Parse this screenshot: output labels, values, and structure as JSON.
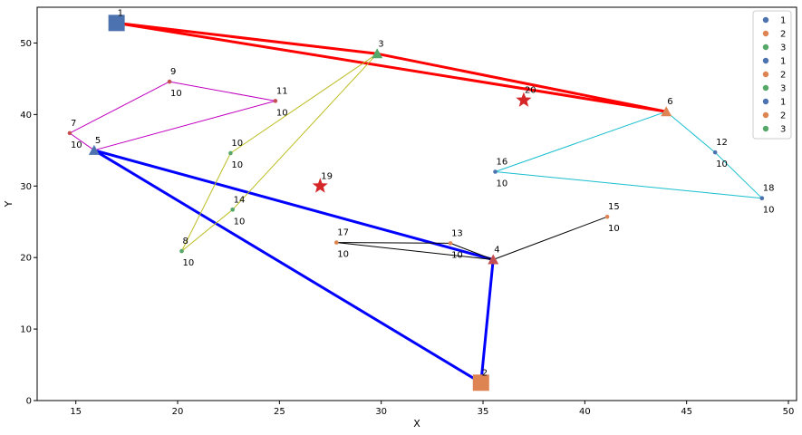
{
  "chart_data": {
    "type": "scatter",
    "xlabel": "X",
    "ylabel": "Y",
    "xlim": [
      13.1,
      50.4
    ],
    "ylim": [
      0,
      55
    ],
    "xticks": [
      15,
      20,
      25,
      30,
      35,
      40,
      45,
      50
    ],
    "yticks": [
      0,
      10,
      20,
      30,
      40,
      50
    ],
    "grid": false,
    "legend_position": "top-right",
    "legend": [
      {
        "label": "1",
        "color": "#4c72b0"
      },
      {
        "label": "2",
        "color": "#dd8452"
      },
      {
        "label": "3",
        "color": "#55a868"
      },
      {
        "label": "1",
        "color": "#4c72b0"
      },
      {
        "label": "2",
        "color": "#dd8452"
      },
      {
        "label": "3",
        "color": "#55a868"
      },
      {
        "label": "1",
        "color": "#4c72b0"
      },
      {
        "label": "2",
        "color": "#dd8452"
      },
      {
        "label": "3",
        "color": "#55a868"
      }
    ],
    "nodes": [
      {
        "id": "1",
        "x": 17.0,
        "y": 52.8,
        "marker": "square",
        "color": "#4c72b0"
      },
      {
        "id": "2",
        "x": 34.9,
        "y": 2.5,
        "marker": "square",
        "color": "#dd8452"
      },
      {
        "id": "3",
        "x": 29.8,
        "y": 48.5,
        "marker": "triangle",
        "color": "#55a868"
      },
      {
        "id": "4",
        "x": 35.5,
        "y": 19.7,
        "marker": "triangle",
        "color": "#c44e52"
      },
      {
        "id": "5",
        "x": 15.9,
        "y": 35.0,
        "marker": "triangle",
        "color": "#4c72b0"
      },
      {
        "id": "6",
        "x": 44.0,
        "y": 40.4,
        "marker": "triangle",
        "color": "#dd8452"
      },
      {
        "id": "7",
        "x": 14.7,
        "y": 37.4,
        "marker": "dot",
        "color": "#c44e52",
        "demand": "10"
      },
      {
        "id": "8",
        "x": 20.2,
        "y": 20.9,
        "marker": "dot",
        "color": "#55a868",
        "demand": "10"
      },
      {
        "id": "9",
        "x": 19.6,
        "y": 44.6,
        "marker": "dot",
        "color": "#c44e52",
        "demand": "10"
      },
      {
        "id": "10",
        "x": 22.6,
        "y": 34.6,
        "marker": "dot",
        "color": "#55a868",
        "demand": "10"
      },
      {
        "id": "11",
        "x": 24.8,
        "y": 41.9,
        "marker": "dot",
        "color": "#c44e52",
        "demand": "10"
      },
      {
        "id": "12",
        "x": 46.4,
        "y": 34.7,
        "marker": "dot",
        "color": "#4c72b0",
        "demand": "10"
      },
      {
        "id": "13",
        "x": 33.4,
        "y": 22.0,
        "marker": "dot",
        "color": "#dd8452",
        "demand": "10"
      },
      {
        "id": "14",
        "x": 22.7,
        "y": 26.7,
        "marker": "dot",
        "color": "#55a868",
        "demand": "10"
      },
      {
        "id": "15",
        "x": 41.1,
        "y": 25.7,
        "marker": "dot",
        "color": "#dd8452",
        "demand": "10"
      },
      {
        "id": "16",
        "x": 35.6,
        "y": 32.0,
        "marker": "dot",
        "color": "#4c72b0",
        "demand": "10"
      },
      {
        "id": "17",
        "x": 27.8,
        "y": 22.1,
        "marker": "dot",
        "color": "#dd8452",
        "demand": "10"
      },
      {
        "id": "18",
        "x": 48.7,
        "y": 28.3,
        "marker": "dot",
        "color": "#4c72b0",
        "demand": "10"
      },
      {
        "id": "19",
        "x": 27.0,
        "y": 30.0,
        "marker": "star",
        "color": "#d62728"
      },
      {
        "id": "20",
        "x": 37.0,
        "y": 42.0,
        "marker": "star",
        "color": "#d62728"
      }
    ],
    "routes": [
      {
        "color": "#ff0000",
        "width": 3,
        "points": [
          [
            17.0,
            52.8
          ],
          [
            29.8,
            48.5
          ],
          [
            44.0,
            40.4
          ],
          [
            17.0,
            52.8
          ]
        ]
      },
      {
        "color": "#0000ff",
        "width": 3,
        "points": [
          [
            15.9,
            35.0
          ],
          [
            35.5,
            19.7
          ],
          [
            34.9,
            2.5
          ],
          [
            15.9,
            35.0
          ]
        ]
      },
      {
        "color": "#bcbd22",
        "width": 1,
        "points": [
          [
            29.8,
            48.5
          ],
          [
            22.6,
            34.6
          ],
          [
            20.2,
            20.9
          ],
          [
            22.7,
            26.7
          ],
          [
            29.8,
            48.5
          ]
        ]
      },
      {
        "color": "#c000c0",
        "width": 1,
        "points": [
          [
            15.9,
            35.0
          ],
          [
            14.7,
            37.4
          ],
          [
            19.6,
            44.6
          ],
          [
            24.8,
            41.9
          ],
          [
            15.9,
            35.0
          ]
        ]
      },
      {
        "color": "#17becf",
        "width": 1,
        "points": [
          [
            44.0,
            40.4
          ],
          [
            35.6,
            32.0
          ],
          [
            48.7,
            28.3
          ],
          [
            46.4,
            34.7
          ],
          [
            44.0,
            40.4
          ]
        ]
      },
      {
        "color": "#000000",
        "width": 1,
        "points": [
          [
            35.5,
            19.7
          ],
          [
            33.4,
            22.0
          ],
          [
            27.8,
            22.1
          ],
          [
            35.5,
            19.7
          ],
          [
            41.1,
            25.7
          ],
          [
            35.5,
            19.7
          ]
        ]
      }
    ]
  }
}
